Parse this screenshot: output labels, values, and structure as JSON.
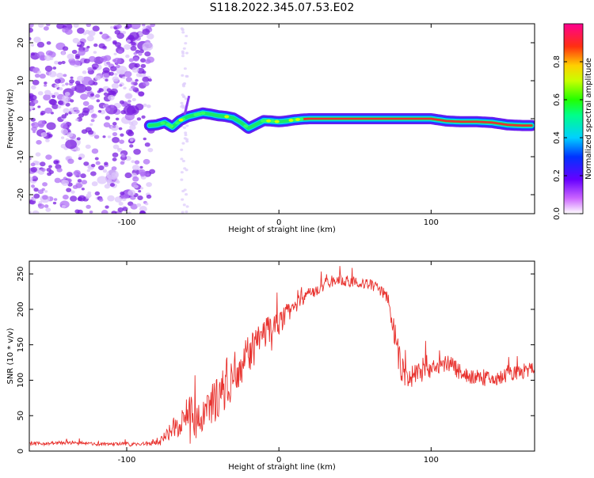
{
  "title": "S118.2022.345.07.53.E02",
  "colors": {
    "snr_line": "#e8322e",
    "ridge_core": "#e83030",
    "scatter": "#7a1fe0",
    "axis": "#000000"
  },
  "chart_data": [
    {
      "type": "heatmap",
      "xlabel": "Height of straight line (km)",
      "ylabel": "Frequency (Hz)",
      "xlim": [
        -164,
        168
      ],
      "ylim": [
        -25,
        25
      ],
      "xticks": [
        -100,
        0,
        100
      ],
      "xtick_labels": [
        "-100",
        "0",
        "100"
      ],
      "yticks": [
        -20,
        -10,
        0,
        10,
        20
      ],
      "ytick_labels": [
        "-20",
        "-10",
        "0",
        "10",
        "20"
      ],
      "ridge": {
        "x": [
          -85,
          -80,
          -75,
          -70,
          -65,
          -60,
          -55,
          -50,
          -45,
          -40,
          -35,
          -30,
          -25,
          -20,
          -15,
          -10,
          -5,
          0,
          5,
          10,
          15,
          20,
          40,
          60,
          80,
          100,
          110,
          120,
          130,
          140,
          150,
          160,
          166
        ],
        "y": [
          -1.8,
          -1.6,
          -1.0,
          -2.2,
          -0.5,
          0.5,
          1.0,
          1.5,
          1.2,
          0.8,
          0.6,
          0.2,
          -1.0,
          -2.5,
          -1.5,
          -0.5,
          -0.6,
          -0.8,
          -0.6,
          -0.3,
          -0.1,
          0.0,
          0.0,
          0.0,
          0.0,
          0.0,
          -0.6,
          -0.8,
          -0.8,
          -1.0,
          -1.6,
          -1.8,
          -1.8
        ]
      },
      "colorbar": {
        "label": "Normalized spectral amplitude",
        "range": [
          0.0,
          1.0
        ],
        "ticks": [
          0.0,
          0.2,
          0.4,
          0.6,
          0.8
        ],
        "tick_labels": [
          "0.0",
          "0.2",
          "0.4",
          "0.6",
          "0.8"
        ],
        "colormap": "gist_rainbow"
      }
    },
    {
      "type": "line",
      "xlabel": "Height of straight line (km)",
      "ylabel": "SNR (10 * v/v)",
      "xlim": [
        -164,
        168
      ],
      "ylim": [
        0,
        268
      ],
      "xticks": [
        -100,
        0,
        100
      ],
      "xtick_labels": [
        "-100",
        "0",
        "100"
      ],
      "yticks": [
        0,
        50,
        100,
        150,
        200,
        250
      ],
      "ytick_labels": [
        "0",
        "50",
        "100",
        "150",
        "200",
        "250"
      ],
      "series": [
        {
          "x": [
            -164,
            -150,
            -140,
            -130,
            -120,
            -110,
            -100,
            -90,
            -80,
            -75,
            -70,
            -65,
            -60,
            -55,
            -50,
            -45,
            -40,
            -35,
            -30,
            -25,
            -20,
            -15,
            -10,
            -5,
            0,
            5,
            10,
            15,
            20,
            25,
            30,
            35,
            40,
            45,
            50,
            55,
            60,
            65,
            70,
            72,
            75,
            78,
            80,
            85,
            90,
            95,
            100,
            105,
            110,
            115,
            120,
            125,
            130,
            135,
            140,
            145,
            150,
            155,
            160,
            165,
            168
          ],
          "values": [
            10,
            11,
            12,
            11,
            10,
            10,
            10,
            10,
            12,
            18,
            28,
            45,
            55,
            45,
            40,
            60,
            80,
            95,
            110,
            125,
            135,
            150,
            165,
            175,
            180,
            195,
            205,
            215,
            222,
            228,
            235,
            240,
            242,
            240,
            238,
            236,
            235,
            230,
            222,
            210,
            175,
            140,
            118,
            105,
            112,
            120,
            118,
            120,
            125,
            118,
            112,
            106,
            104,
            102,
            100,
            102,
            108,
            110,
            112,
            115,
            118
          ],
          "spread": [
            5,
            5,
            5,
            5,
            5,
            5,
            5,
            5,
            8,
            20,
            30,
            45,
            55,
            55,
            55,
            60,
            65,
            70,
            65,
            60,
            55,
            50,
            45,
            40,
            35,
            30,
            25,
            22,
            20,
            18,
            18,
            16,
            15,
            15,
            15,
            15,
            15,
            15,
            18,
            25,
            40,
            45,
            45,
            35,
            35,
            35,
            30,
            28,
            25,
            25,
            25,
            22,
            22,
            22,
            22,
            22,
            22,
            22,
            22,
            22,
            22
          ]
        }
      ]
    }
  ]
}
